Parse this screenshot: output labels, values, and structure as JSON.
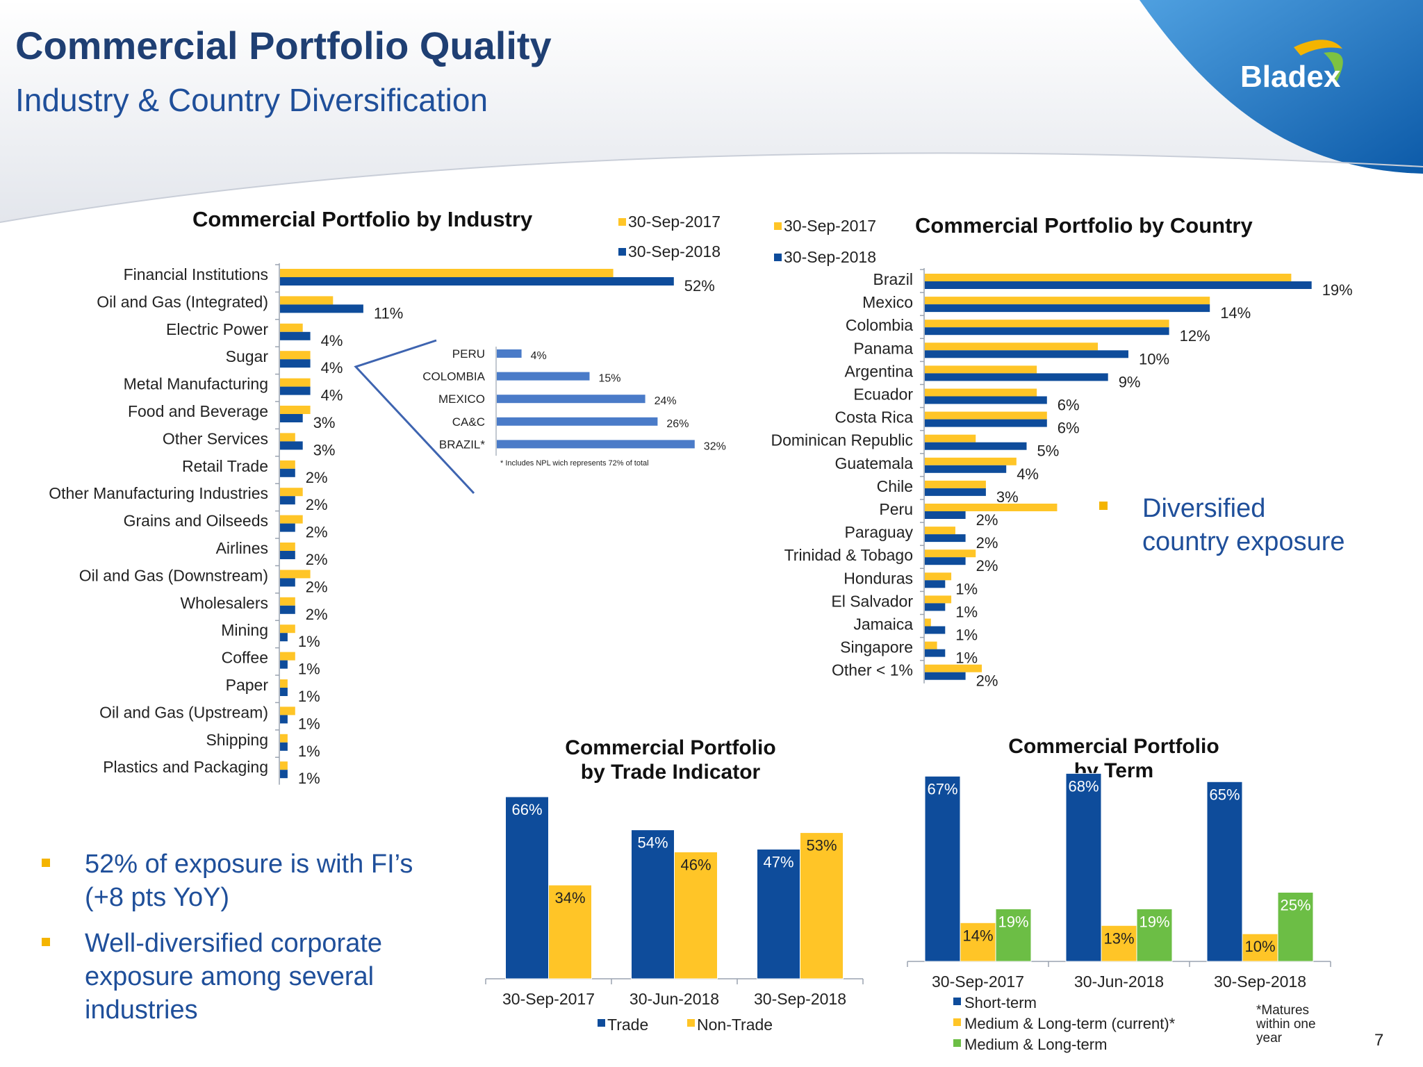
{
  "header": {
    "title": "Commercial Portfolio Quality",
    "subtitle": "Industry & Country Diversification",
    "logo_text": "Bladex",
    "page_number": "7"
  },
  "colors": {
    "navy": "#1F3F73",
    "blue": "#0E4C9B",
    "yellow": "#FFC527",
    "green": "#6CBE45",
    "light_blue": "#4A7BC8",
    "bullet": "#F4B400"
  },
  "bullets": {
    "right": [
      "Diversified country exposure"
    ],
    "left": [
      "52% of exposure is with FI’s (+8 pts YoY)",
      "Well-diversified corporate exposure among several industries"
    ]
  },
  "chart_data": [
    {
      "id": "industry",
      "type": "bar",
      "orientation": "horizontal",
      "title": "Commercial Portfolio by Industry",
      "legend": [
        "30-Sep-2017",
        "30-Sep-2018"
      ],
      "categories": [
        "Financial Institutions",
        "Oil and Gas (Integrated)",
        "Electric Power",
        "Sugar",
        "Metal Manufacturing",
        "Food and Beverage",
        "Other Services",
        "Retail Trade",
        "Other Manufacturing Industries",
        "Grains and Oilseeds",
        "Airlines",
        "Oil and Gas (Downstream)",
        "Wholesalers",
        "Mining",
        "Coffee",
        "Paper",
        "Oil and Gas (Upstream)",
        "Shipping",
        "Plastics and Packaging"
      ],
      "series": [
        {
          "name": "30-Sep-2017",
          "values": [
            44,
            7,
            3,
            4,
            4,
            4,
            2,
            2,
            3,
            3,
            2,
            4,
            2,
            2,
            2,
            1,
            2,
            1,
            1
          ]
        },
        {
          "name": "30-Sep-2018",
          "values": [
            52,
            11,
            4,
            4,
            4,
            3,
            3,
            2,
            2,
            2,
            2,
            2,
            2,
            1,
            1,
            1,
            1,
            1,
            1
          ]
        }
      ],
      "labels": [
        "52%",
        "11%",
        "4%",
        "4%",
        "4%",
        "3%",
        "3%",
        "2%",
        "2%",
        "2%",
        "2%",
        "2%",
        "2%",
        "1%",
        "1%",
        "1%",
        "1%",
        "1%",
        "1%"
      ]
    },
    {
      "id": "fi_inset",
      "type": "bar",
      "orientation": "horizontal",
      "categories": [
        "PERU",
        "COLOMBIA",
        "MEXICO",
        "CA&C",
        "BRAZIL*"
      ],
      "values": [
        4,
        15,
        24,
        26,
        32
      ],
      "labels": [
        "4%",
        "15%",
        "24%",
        "26%",
        "32%"
      ],
      "note": "* Includes NPL wich represents 72% of total"
    },
    {
      "id": "country",
      "type": "bar",
      "orientation": "horizontal",
      "title": "Commercial Portfolio by Country",
      "legend": [
        "30-Sep-2017",
        "30-Sep-2018"
      ],
      "categories": [
        "Brazil",
        "Mexico",
        "Colombia",
        "Panama",
        "Argentina",
        "Ecuador",
        "Costa Rica",
        "Dominican Republic",
        "Guatemala",
        "Chile",
        "Peru",
        "Paraguay",
        "Trinidad & Tobago",
        "Honduras",
        "El Salvador",
        "Jamaica",
        "Singapore",
        "Other < 1%"
      ],
      "series": [
        {
          "name": "30-Sep-2017",
          "values": [
            18,
            14,
            12,
            8.5,
            5.5,
            5.5,
            6,
            2.5,
            4.5,
            3,
            6.5,
            1.5,
            2.5,
            1.3,
            1.3,
            0.3,
            0.6,
            2.8
          ]
        },
        {
          "name": "30-Sep-2018",
          "values": [
            19,
            14,
            12,
            10,
            9,
            6,
            6,
            5,
            4,
            3,
            2,
            2,
            2,
            1,
            1,
            1,
            1,
            2
          ]
        }
      ],
      "labels": [
        "19%",
        "14%",
        "12%",
        "10%",
        "9%",
        "6%",
        "6%",
        "5%",
        "4%",
        "3%",
        "2%",
        "2%",
        "2%",
        "1%",
        "1%",
        "1%",
        "1%",
        "2%"
      ]
    },
    {
      "id": "trade",
      "type": "bar",
      "title": "Commercial Portfolio by Trade Indicator",
      "categories": [
        "30-Sep-2017",
        "30-Jun-2018",
        "30-Sep-2018"
      ],
      "series": [
        {
          "name": "Trade",
          "values": [
            66,
            54,
            47
          ]
        },
        {
          "name": "Non-Trade",
          "values": [
            34,
            46,
            53
          ]
        }
      ],
      "ylim": [
        0,
        70
      ]
    },
    {
      "id": "term",
      "type": "bar",
      "title": "Commercial Portfolio by Term",
      "categories": [
        "30-Sep-2017",
        "30-Jun-2018",
        "30-Sep-2018"
      ],
      "series": [
        {
          "name": "Short-term",
          "values": [
            67,
            68,
            65
          ]
        },
        {
          "name": "Medium & Long-term (current)*",
          "values": [
            14,
            13,
            10
          ]
        },
        {
          "name": "Medium & Long-term",
          "values": [
            19,
            19,
            25
          ]
        }
      ],
      "ylim": [
        0,
        70
      ],
      "note": "*Matures within one year"
    }
  ]
}
